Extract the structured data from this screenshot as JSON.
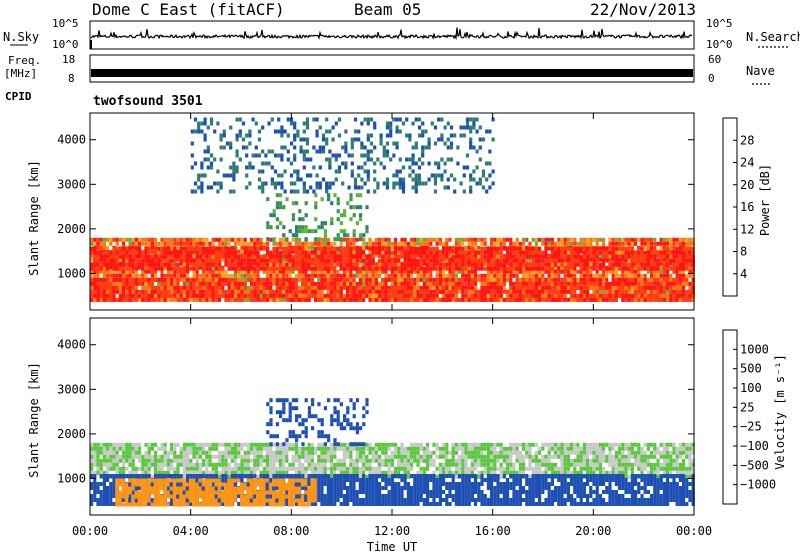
{
  "header": {
    "station": "Dome C East (fitACF)",
    "beam": "Beam 05",
    "date": "22/Nov/2013"
  },
  "nsky_panel": {
    "left_label": "N.Sky",
    "right_label": "N.Search",
    "left_ticks": [
      "10^5",
      "10^0"
    ],
    "right_ticks": [
      "10^5",
      "10^0"
    ]
  },
  "freq_panel": {
    "left_label_1": "Freq.",
    "left_label_2": "[MHz]",
    "right_label": "Nave",
    "left_ticks": [
      "18",
      "8"
    ],
    "right_ticks": [
      "60",
      "0"
    ]
  },
  "cpid_panel": {
    "label": "CPID",
    "program": "twofsound 3501"
  },
  "power_panel": {
    "ylabel": "Slant Range [km]",
    "yticks": [
      "4000",
      "3000",
      "2000",
      "1000"
    ],
    "colorbar_label": "Power [dB]",
    "colorbar_ticks": [
      "28",
      "24",
      "20",
      "16",
      "12",
      "8",
      "4"
    ]
  },
  "velocity_panel": {
    "ylabel": "Slant Range [km]",
    "yticks": [
      "4000",
      "3000",
      "2000",
      "1000"
    ],
    "colorbar_label": "Velocity [m s⁻¹]",
    "colorbar_ticks": [
      "1000",
      "500",
      "100",
      "25",
      "−25",
      "−100",
      "−500",
      "−1000"
    ]
  },
  "xaxis": {
    "label": "Time UT",
    "ticks": [
      "00:00",
      "04:00",
      "08:00",
      "12:00",
      "16:00",
      "20:00",
      "00:00"
    ]
  },
  "colors": {
    "power_scale": [
      "#0a1ef0",
      "#1e50b4",
      "#2f7d70",
      "#3c9650",
      "#5ab43c",
      "#f5a01e",
      "#f57814",
      "#ff3c14",
      "#ff1414"
    ],
    "velocity_scale": [
      "#ff0000",
      "#ff5a00",
      "#ff9614",
      "#c8c8c8",
      "#c8c8c8",
      "#5ac83c",
      "#2d8c64",
      "#1e50b4",
      "#1428c8"
    ]
  },
  "chart_data": [
    {
      "type": "heatmap",
      "title": "Power",
      "x_range_hours": [
        0,
        24
      ],
      "ylim": [
        180,
        4600
      ],
      "zlim": [
        0,
        30
      ],
      "z_unit": "dB",
      "features": [
        {
          "region": "main scatter band",
          "range_km": [
            400,
            1800
          ],
          "time_h": [
            0,
            24
          ],
          "power_db": [
            16,
            30
          ]
        },
        {
          "region": "strong band 1",
          "range_km": [
            1100,
            1600
          ],
          "time_h": [
            0,
            24
          ],
          "power_db": [
            24,
            30
          ]
        },
        {
          "region": "strong band 2",
          "range_km": [
            400,
            900
          ],
          "time_h": [
            0,
            24
          ],
          "power_db": [
            22,
            30
          ]
        },
        {
          "region": "oblique echo",
          "range_km": [
            1800,
            2800
          ],
          "time_h": [
            7,
            11
          ],
          "power_db": [
            8,
            16
          ]
        },
        {
          "region": "far range patch",
          "range_km": [
            2800,
            4500
          ],
          "time_h": [
            4,
            16
          ],
          "power_db": [
            4,
            10
          ]
        }
      ]
    },
    {
      "type": "heatmap",
      "title": "Velocity",
      "x_range_hours": [
        0,
        24
      ],
      "ylim": [
        180,
        4600
      ],
      "zlim": [
        -1000,
        1000
      ],
      "z_unit": "m s^-1",
      "features": [
        {
          "region": "low-velocity (ground) band",
          "range_km": [
            1000,
            1800
          ],
          "time_h": [
            0,
            24
          ],
          "velocity_ms": [
            -25,
            25
          ]
        },
        {
          "region": "positive velocity region",
          "range_km": [
            400,
            1100
          ],
          "time_h": [
            0,
            24
          ],
          "velocity_ms": [
            100,
            500
          ]
        },
        {
          "region": "negative velocity patches",
          "range_km": [
            400,
            1000
          ],
          "time_h": [
            1,
            9
          ],
          "velocity_ms": [
            -500,
            -100
          ]
        },
        {
          "region": "oblique echo",
          "range_km": [
            1800,
            2800
          ],
          "time_h": [
            7,
            11
          ],
          "velocity_ms": [
            100,
            500
          ]
        }
      ]
    }
  ]
}
